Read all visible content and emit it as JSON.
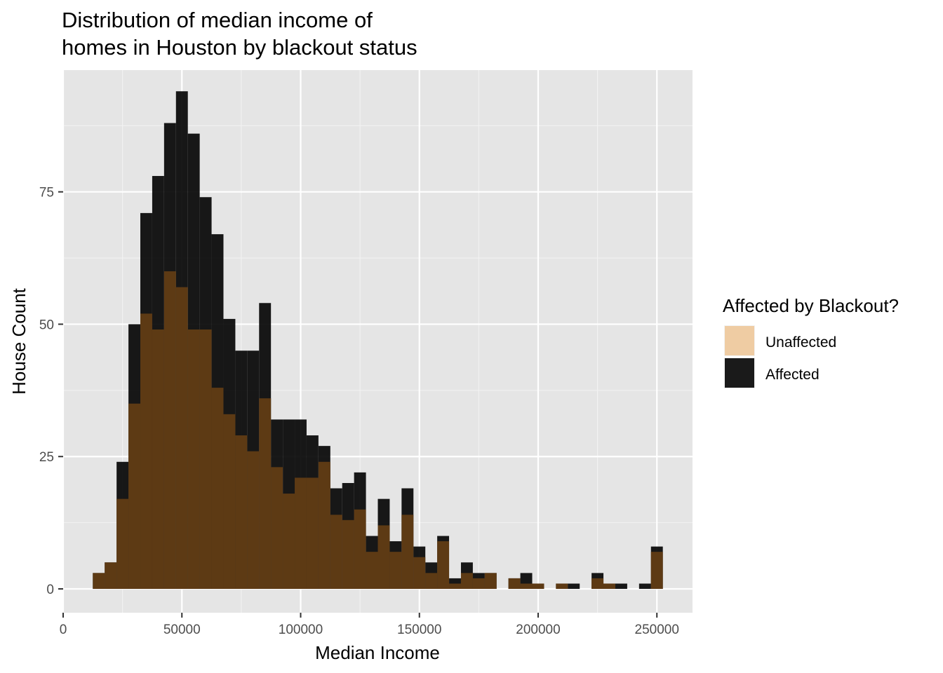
{
  "chart_data": {
    "type": "bar",
    "title_lines": [
      "Distribution of median income of",
      "homes in Houston by blackout status"
    ],
    "xlabel": "Median Income",
    "ylabel": "House Count",
    "xlim": [
      0,
      265000
    ],
    "ylim": [
      -4.5,
      98
    ],
    "x_ticks": [
      0,
      50000,
      100000,
      150000,
      200000,
      250000
    ],
    "x_tick_labels": [
      "0",
      "50000",
      "100000",
      "150000",
      "200000",
      "250000"
    ],
    "y_ticks": [
      0,
      25,
      50,
      75
    ],
    "y_tick_labels": [
      "0",
      "25",
      "50",
      "75"
    ],
    "grid": true,
    "legend_position": "right",
    "legend_title": "Affected by Blackout?",
    "bin_width": 5000,
    "bins_start": [
      12500,
      17500,
      22500,
      27500,
      32500,
      37500,
      42500,
      47500,
      52500,
      57500,
      62500,
      67500,
      72500,
      77500,
      82500,
      87500,
      92500,
      97500,
      102500,
      107500,
      112500,
      117500,
      122500,
      127500,
      132500,
      137500,
      142500,
      147500,
      152500,
      157500,
      162500,
      167500,
      172500,
      177500,
      182500,
      187500,
      192500,
      197500,
      202500,
      207500,
      212500,
      217500,
      222500,
      227500,
      232500,
      237500,
      242500,
      247500
    ],
    "series": [
      {
        "name": "Unaffected",
        "color": "#efcca3",
        "values": [
          3,
          5,
          17,
          35,
          52,
          49,
          60,
          57,
          49,
          49,
          38,
          33,
          29,
          26,
          36,
          23,
          18,
          21,
          21,
          24,
          14,
          13,
          15,
          7,
          12,
          7,
          14,
          6,
          3,
          9,
          1,
          3,
          2,
          3,
          0,
          2,
          1,
          1,
          0,
          1,
          0,
          0,
          2,
          1,
          0,
          0,
          0,
          7
        ]
      },
      {
        "name": "Affected",
        "color": "#000000",
        "values": [
          3,
          5,
          24,
          50,
          71,
          78,
          88,
          94,
          86,
          74,
          67,
          51,
          45,
          45,
          54,
          32,
          32,
          32,
          29,
          27,
          19,
          20,
          22,
          10,
          17,
          9,
          19,
          8,
          5,
          10,
          2,
          5,
          3,
          3,
          0,
          2,
          3,
          1,
          0,
          1,
          1,
          0,
          3,
          1,
          1,
          0,
          1,
          8
        ]
      }
    ]
  }
}
